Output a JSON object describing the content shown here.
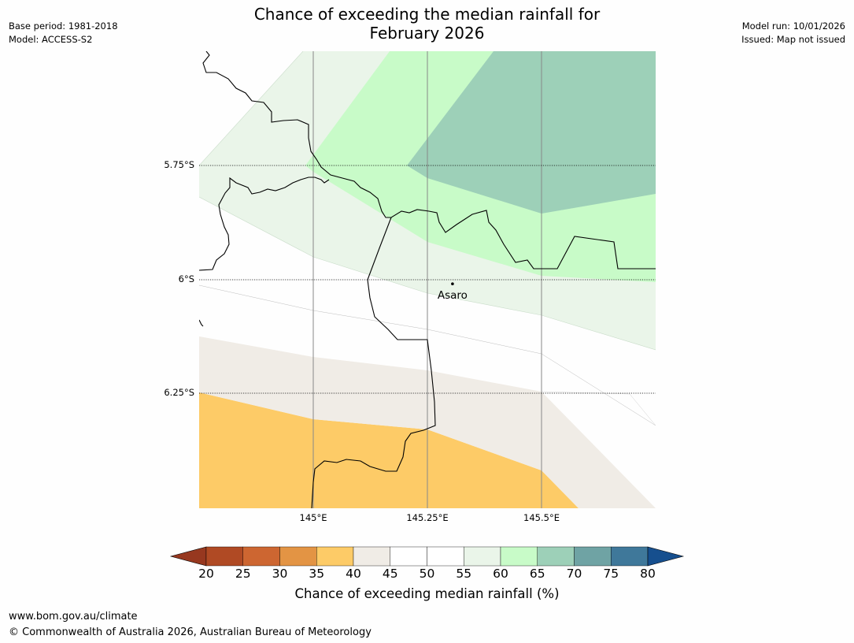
{
  "header": {
    "title_line1": "Chance of exceeding the median rainfall for",
    "title_line2": "February 2026",
    "base_period": "Base period: 1981-2018",
    "model": "Model: ACCESS-S2",
    "model_run": "Model run: 10/01/2026",
    "issued": "Issued: Map not issued"
  },
  "map": {
    "lat_labels": [
      "5.75°S",
      "6°S",
      "6.25°S"
    ],
    "lon_labels": [
      "145°E",
      "145.25°E",
      "145.5°E"
    ],
    "place": {
      "name": "Asaro",
      "lon": 145.305,
      "lat": -6.009
    },
    "extent": {
      "lon_min": 144.75,
      "lon_max": 145.75,
      "lat_max": -5.5,
      "lat_min": -6.5
    },
    "category_colors": {
      "20-25": "#b04a24",
      "25-30": "#cd6631",
      "30-35": "#e39444",
      "35-40": "#fdcb67",
      "40-45": "#f0ece6",
      "45-50": "#ffffff",
      "50-55": "#ffffff",
      "55-60": "#eaf5e9",
      "60-65": "#c8fbc8",
      "65-70": "#9dd0b8",
      "70-75": "#6fa3a4",
      "75-80": "#3f789a",
      "below": "#97381f",
      "above": "#164f8e"
    }
  },
  "colorbar": {
    "ticks": [
      "20",
      "25",
      "30",
      "35",
      "40",
      "45",
      "50",
      "55",
      "60",
      "65",
      "70",
      "75",
      "80"
    ],
    "label": "Chance of exceeding median rainfall (%)"
  },
  "footer": {
    "url": "www.bom.gov.au/climate",
    "copyright": "© Commonwealth of Australia 2026, Australian Bureau of Meteorology"
  }
}
